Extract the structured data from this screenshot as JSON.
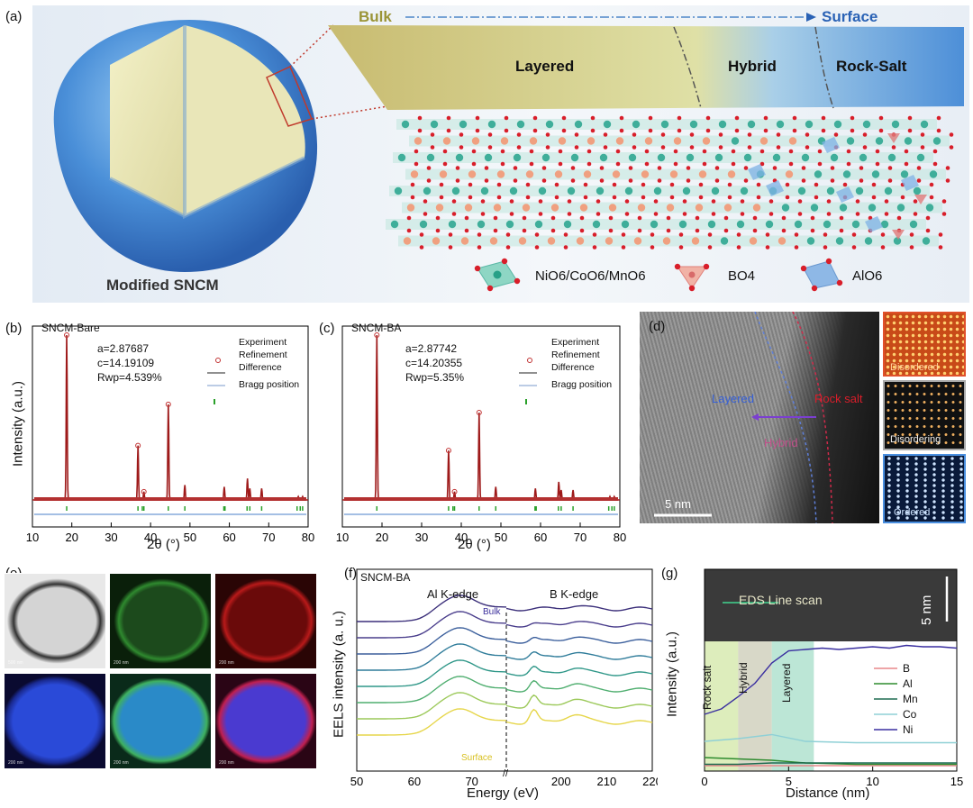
{
  "panel_a": {
    "letter": "(a)",
    "bulk": "Bulk",
    "surface": "Surface",
    "regions": [
      "Layered",
      "Hybrid",
      "Rock-Salt"
    ],
    "particle_label": "Modified SNCM",
    "legend": {
      "ni_co_mn": "NiO6/CoO6/MnO6",
      "bo4": "BO4",
      "alo6": "AlO6"
    }
  },
  "panel_b": {
    "letter": "(b)",
    "sample": "SNCM-Bare",
    "a": "a=2.87687",
    "c": "c=14.19109",
    "rwp": "Rwp=4.539%",
    "legend": [
      "Experiment",
      "Refinement",
      "Difference",
      "Bragg position"
    ],
    "ylabel": "Intensity (a.u.)",
    "xlabel": "2θ (°)"
  },
  "panel_c": {
    "letter": "(c)",
    "sample": "SNCM-BA",
    "a": "a=2.87742",
    "c": "c=14.20355",
    "rwp": "Rwp=5.35%",
    "legend": [
      "Experiment",
      "Refinement",
      "Difference",
      "Bragg position"
    ],
    "xlabel": "2θ (°)"
  },
  "panel_d": {
    "letter": "(d)",
    "layered": "Layered",
    "rock_salt": "Rock salt",
    "hybrid": "Hybrid",
    "scale": "5 nm",
    "insets": [
      "Disordered",
      "Disordering",
      "Ordered"
    ]
  },
  "panel_e": {
    "letter": "(e)"
  },
  "panel_f": {
    "letter": "(f)",
    "sample": "SNCM-BA",
    "al_edge": "Al K-edge",
    "b_edge": "B K-edge",
    "bulk": "Bulk",
    "surface": "Surface",
    "ylabel": "EELS intensity (a. u.)",
    "xlabel": "Energy (eV)",
    "break": "//"
  },
  "panel_g": {
    "letter": "(g)",
    "scan": "EDS Line scan",
    "scale": "5 nm",
    "regions": [
      "Rock salt",
      "Hybrid",
      "Layered"
    ],
    "legend": [
      "B",
      "Al",
      "Mn",
      "Co",
      "Ni"
    ],
    "ylabel": "Intensity (a.u.)",
    "xlabel": "Distance (nm)"
  },
  "colors": {
    "ni": "#3fae9a",
    "o": "#d81e2a",
    "li": "#f0a080",
    "al": "#7fb2e5",
    "b": "#e07a7a"
  },
  "chart_data": [
    {
      "id": "xrd_bare",
      "type": "line",
      "title": "SNCM-Bare",
      "xlabel": "2θ (°)",
      "ylabel": "Intensity (a.u.)",
      "xlim": [
        10,
        80
      ],
      "xticks": [
        10,
        20,
        30,
        40,
        50,
        60,
        70,
        80
      ],
      "peaks": [
        [
          18.7,
          1.0
        ],
        [
          36.8,
          0.33
        ],
        [
          38.3,
          0.05
        ],
        [
          44.5,
          0.58
        ],
        [
          48.7,
          0.09
        ],
        [
          58.7,
          0.08
        ],
        [
          64.6,
          0.13
        ],
        [
          65.2,
          0.07
        ],
        [
          68.2,
          0.07
        ],
        [
          77.5,
          0.02
        ],
        [
          78.6,
          0.02
        ]
      ],
      "bragg": [
        18.7,
        36.8,
        37.9,
        38.3,
        44.5,
        48.7,
        58.6,
        58.9,
        64.5,
        65.2,
        68.2,
        77.2,
        78.0,
        78.6
      ]
    },
    {
      "id": "xrd_ba",
      "type": "line",
      "title": "SNCM-BA",
      "xlabel": "2θ (°)",
      "xlim": [
        10,
        80
      ],
      "xticks": [
        10,
        20,
        30,
        40,
        50,
        60,
        70,
        80
      ],
      "peaks": [
        [
          18.7,
          1.0
        ],
        [
          36.8,
          0.3
        ],
        [
          38.3,
          0.05
        ],
        [
          44.5,
          0.53
        ],
        [
          48.7,
          0.08
        ],
        [
          58.7,
          0.07
        ],
        [
          64.6,
          0.11
        ],
        [
          65.2,
          0.06
        ],
        [
          68.2,
          0.06
        ],
        [
          77.5,
          0.02
        ],
        [
          78.6,
          0.02
        ]
      ],
      "bragg": [
        18.7,
        36.8,
        37.9,
        38.3,
        44.5,
        48.7,
        58.6,
        58.9,
        64.5,
        65.2,
        68.2,
        77.2,
        78.0,
        78.6
      ]
    },
    {
      "id": "eels",
      "type": "line",
      "xlabel": "Energy (eV)",
      "ylabel": "EELS intensity (a. u.)",
      "xticks": [
        50,
        60,
        70,
        200,
        210,
        220
      ],
      "series_count": 8,
      "series_colors": [
        "#3b2f7a",
        "#4a3e8c",
        "#3b5f9c",
        "#2f7c9a",
        "#2f9788",
        "#4fae6f",
        "#9cc95a",
        "#e6d64a"
      ]
    },
    {
      "id": "eds",
      "type": "line",
      "xlabel": "Distance (nm)",
      "ylabel": "Intensity (a.u.)",
      "xlim": [
        0,
        15
      ],
      "xticks": [
        0,
        5,
        10,
        15
      ],
      "series": [
        {
          "name": "B",
          "color": "#e8878a",
          "x": [
            0,
            3,
            6,
            9,
            12,
            15
          ],
          "y": [
            0.04,
            0.04,
            0.04,
            0.04,
            0.04,
            0.04
          ]
        },
        {
          "name": "Al",
          "color": "#2e8b2e",
          "x": [
            0,
            2,
            4,
            6,
            9,
            12,
            15
          ],
          "y": [
            0.1,
            0.09,
            0.08,
            0.06,
            0.05,
            0.05,
            0.05
          ]
        },
        {
          "name": "Mn",
          "color": "#1e6b50",
          "x": [
            0,
            2,
            4,
            6,
            9,
            12,
            15
          ],
          "y": [
            0.05,
            0.05,
            0.06,
            0.06,
            0.06,
            0.06,
            0.06
          ]
        },
        {
          "name": "Co",
          "color": "#8fd0d6",
          "x": [
            0,
            2,
            4,
            6,
            9,
            12,
            15
          ],
          "y": [
            0.22,
            0.24,
            0.27,
            0.22,
            0.21,
            0.21,
            0.21
          ]
        },
        {
          "name": "Ni",
          "color": "#3a2fa0",
          "x": [
            0,
            1,
            2,
            3,
            4,
            5,
            6,
            7,
            8,
            9,
            10,
            11,
            12,
            13,
            14,
            15
          ],
          "y": [
            0.42,
            0.46,
            0.55,
            0.65,
            0.8,
            0.89,
            0.9,
            0.91,
            0.9,
            0.91,
            0.92,
            0.91,
            0.93,
            0.92,
            0.92,
            0.91
          ]
        }
      ]
    }
  ]
}
